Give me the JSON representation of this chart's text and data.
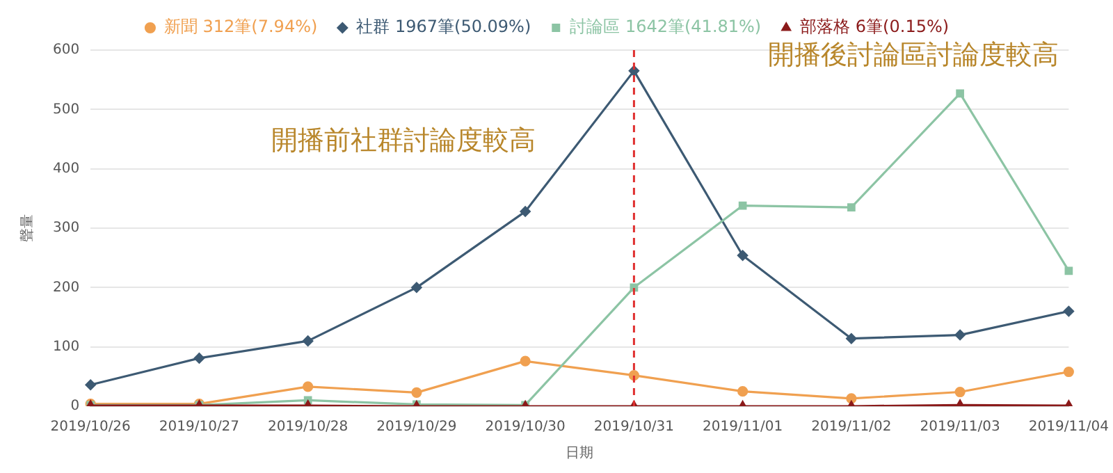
{
  "chart_data": {
    "type": "line",
    "xlabel": "日期",
    "ylabel": "聲量",
    "categories": [
      "2019/10/26",
      "2019/10/27",
      "2019/10/28",
      "2019/10/29",
      "2019/10/30",
      "2019/10/31",
      "2019/11/01",
      "2019/11/02",
      "2019/11/03",
      "2019/11/04"
    ],
    "series": [
      {
        "name": "新聞 312筆(7.94%)",
        "color": "#f0a050",
        "marker": "circle",
        "values": [
          4,
          4,
          33,
          23,
          76,
          52,
          25,
          13,
          24,
          58
        ]
      },
      {
        "name": "社群 1967筆(50.09%)",
        "color": "#3d5a73",
        "marker": "diamond",
        "values": [
          36,
          81,
          110,
          200,
          328,
          565,
          254,
          114,
          120,
          160
        ]
      },
      {
        "name": "討論區 1642筆(41.81%)",
        "color": "#8cc4a4",
        "marker": "square",
        "values": [
          2,
          2,
          10,
          3,
          2,
          200,
          338,
          335,
          527,
          228
        ]
      },
      {
        "name": "部落格 6筆(0.15%)",
        "color": "#8b1a1a",
        "marker": "triangle",
        "values": [
          1,
          1,
          1,
          0,
          0,
          0,
          0,
          0,
          2,
          1
        ]
      }
    ],
    "ylim": [
      0,
      600
    ],
    "yticks": [
      0,
      100,
      200,
      300,
      400,
      500,
      600
    ],
    "grid": "y",
    "legend": "top",
    "ref_lines": [
      {
        "axis": "x",
        "value": "2019/10/31",
        "color": "#e03030",
        "line_style": "dashed"
      }
    ],
    "annotations": [
      "開播前社群討論度較高",
      "開播後討論區討論度較高"
    ]
  }
}
